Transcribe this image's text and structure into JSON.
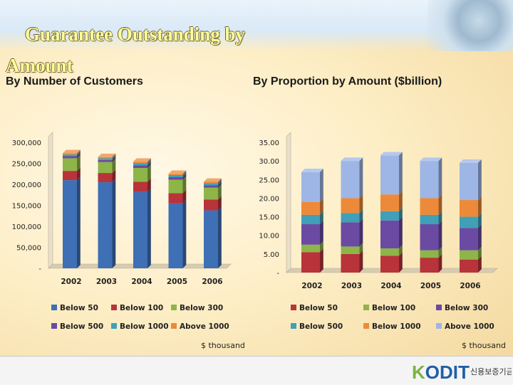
{
  "title_line1": "Guarantee Outstanding by",
  "title_line2": "Amount",
  "subtitle_left": "By Number of Customers",
  "subtitle_right": "By Proportion by Amount ($billion)",
  "logo": {
    "brand": "KODIT",
    "korean": "신용보증기금"
  },
  "colors": {
    "blue": "#3f6fb5",
    "red": "#b8333a",
    "green": "#8db548",
    "purple": "#6a4aa3",
    "teal": "#3fa0b8",
    "orange": "#ec8a3a",
    "lightblue": "#9db6e6"
  },
  "chart_data": [
    {
      "type": "bar",
      "stacked": true,
      "title": "By Number of Customers",
      "categories": [
        "2002",
        "2003",
        "2004",
        "2005",
        "2006"
      ],
      "yticks": [
        "-",
        "50,000",
        "100,000",
        "150,000",
        "200,000",
        "250,000",
        "300,000"
      ],
      "ylim": [
        0,
        300000
      ],
      "unit": "$ thousand",
      "series": [
        {
          "name": "Below 50",
          "color": "#3f6fb5",
          "values": [
            210000,
            205000,
            182000,
            155000,
            138000
          ]
        },
        {
          "name": "Below 100",
          "color": "#b8333a",
          "values": [
            22000,
            22000,
            24000,
            24000,
            26000
          ]
        },
        {
          "name": "Below 300",
          "color": "#8db548",
          "values": [
            30000,
            26000,
            33000,
            32000,
            28000
          ]
        },
        {
          "name": "Below 500",
          "color": "#6a4aa3",
          "values": [
            5000,
            5000,
            6000,
            6000,
            6000
          ]
        },
        {
          "name": "Below 1000",
          "color": "#3fa0b8",
          "values": [
            4000,
            4000,
            5000,
            5000,
            5000
          ]
        },
        {
          "name": "Above 1000",
          "color": "#ec8a3a",
          "values": [
            3000,
            3000,
            4000,
            3000,
            3000
          ]
        }
      ]
    },
    {
      "type": "bar",
      "stacked": true,
      "title": "By Proportion by Amount ($billion)",
      "categories": [
        "2002",
        "2003",
        "2004",
        "2005",
        "2006"
      ],
      "yticks": [
        "-",
        "5.00",
        "10.00",
        "15.00",
        "20.00",
        "25.00",
        "30.00",
        "35.00"
      ],
      "ylim": [
        0,
        35
      ],
      "unit": "$ thousand",
      "series": [
        {
          "name": "Below 50",
          "color": "#b8333a",
          "values": [
            5.5,
            5.0,
            4.5,
            4.0,
            3.5
          ]
        },
        {
          "name": "Below 100",
          "color": "#8db548",
          "values": [
            2.0,
            2.0,
            2.0,
            2.0,
            2.5
          ]
        },
        {
          "name": "Below 300",
          "color": "#6a4aa3",
          "values": [
            5.5,
            6.5,
            7.5,
            7.0,
            6.0
          ]
        },
        {
          "name": "Below 500",
          "color": "#3fa0b8",
          "values": [
            2.5,
            2.5,
            2.5,
            2.5,
            3.0
          ]
        },
        {
          "name": "Below 1000",
          "color": "#ec8a3a",
          "values": [
            3.5,
            4.0,
            4.5,
            4.5,
            4.5
          ]
        },
        {
          "name": "Above 1000",
          "color": "#9db6e6",
          "values": [
            8.0,
            10.0,
            10.5,
            10.0,
            10.0
          ]
        }
      ]
    }
  ]
}
